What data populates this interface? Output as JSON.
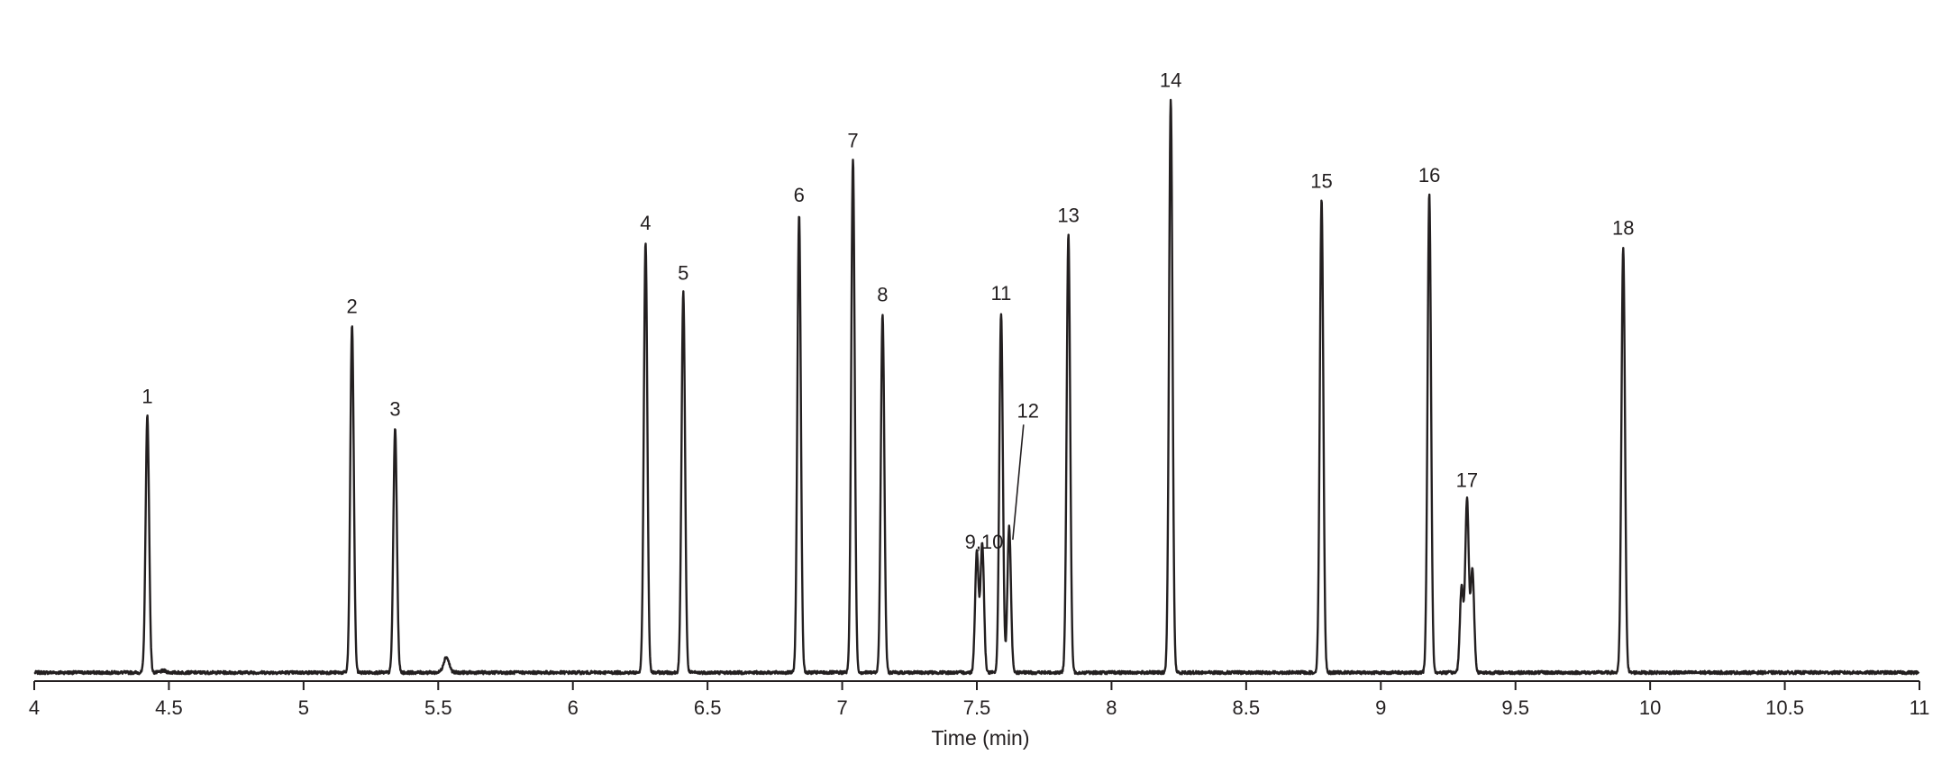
{
  "chart_data": {
    "type": "line",
    "title": "",
    "xlabel": "Time (min)",
    "ylabel": "",
    "xlim": [
      4,
      11
    ],
    "ylim": [
      0,
      100
    ],
    "x_ticks": [
      "4",
      "4.5",
      "5",
      "5.5",
      "6",
      "6.5",
      "7",
      "7.5",
      "8",
      "8.5",
      "9",
      "9.5",
      "10",
      "10.5",
      "11"
    ],
    "grid": false,
    "line_color": "#231f20",
    "baseline": 1.5,
    "peaks": [
      {
        "label": "1",
        "x": 4.42,
        "y": 46.5
      },
      {
        "label": "",
        "x": 4.48,
        "y": 1.8
      },
      {
        "label": "2",
        "x": 5.18,
        "y": 62.3
      },
      {
        "label": "3",
        "x": 5.34,
        "y": 44.3
      },
      {
        "label": "",
        "x": 5.53,
        "y": 4.2
      },
      {
        "label": "4",
        "x": 6.27,
        "y": 76.9
      },
      {
        "label": "5",
        "x": 6.41,
        "y": 68.2
      },
      {
        "label": "6",
        "x": 6.84,
        "y": 81.8
      },
      {
        "label": "7",
        "x": 7.04,
        "y": 91.4
      },
      {
        "label": "8",
        "x": 7.15,
        "y": 64.4
      },
      {
        "label": "",
        "x": 7.5,
        "y": 22.6
      },
      {
        "label": "",
        "x": 7.52,
        "y": 24.1
      },
      {
        "label": "11",
        "x": 7.59,
        "y": 64.6
      },
      {
        "label": "12",
        "x": 7.62,
        "y": 27.0
      },
      {
        "label": "13",
        "x": 7.84,
        "y": 78.3
      },
      {
        "label": "14",
        "x": 8.22,
        "y": 102.0
      },
      {
        "label": "15",
        "x": 8.78,
        "y": 84.3
      },
      {
        "label": "16",
        "x": 9.18,
        "y": 85.3
      },
      {
        "label": "",
        "x": 9.3,
        "y": 16.5
      },
      {
        "label": "17",
        "x": 9.32,
        "y": 31.8
      },
      {
        "label": "",
        "x": 9.34,
        "y": 19.5
      },
      {
        "label": "18",
        "x": 9.9,
        "y": 76.1
      }
    ],
    "annotations": [
      {
        "text": "9,10",
        "x": 7.5,
        "y": 24.5
      },
      {
        "text": "12",
        "x": 7.68,
        "y": 47.5
      }
    ]
  }
}
